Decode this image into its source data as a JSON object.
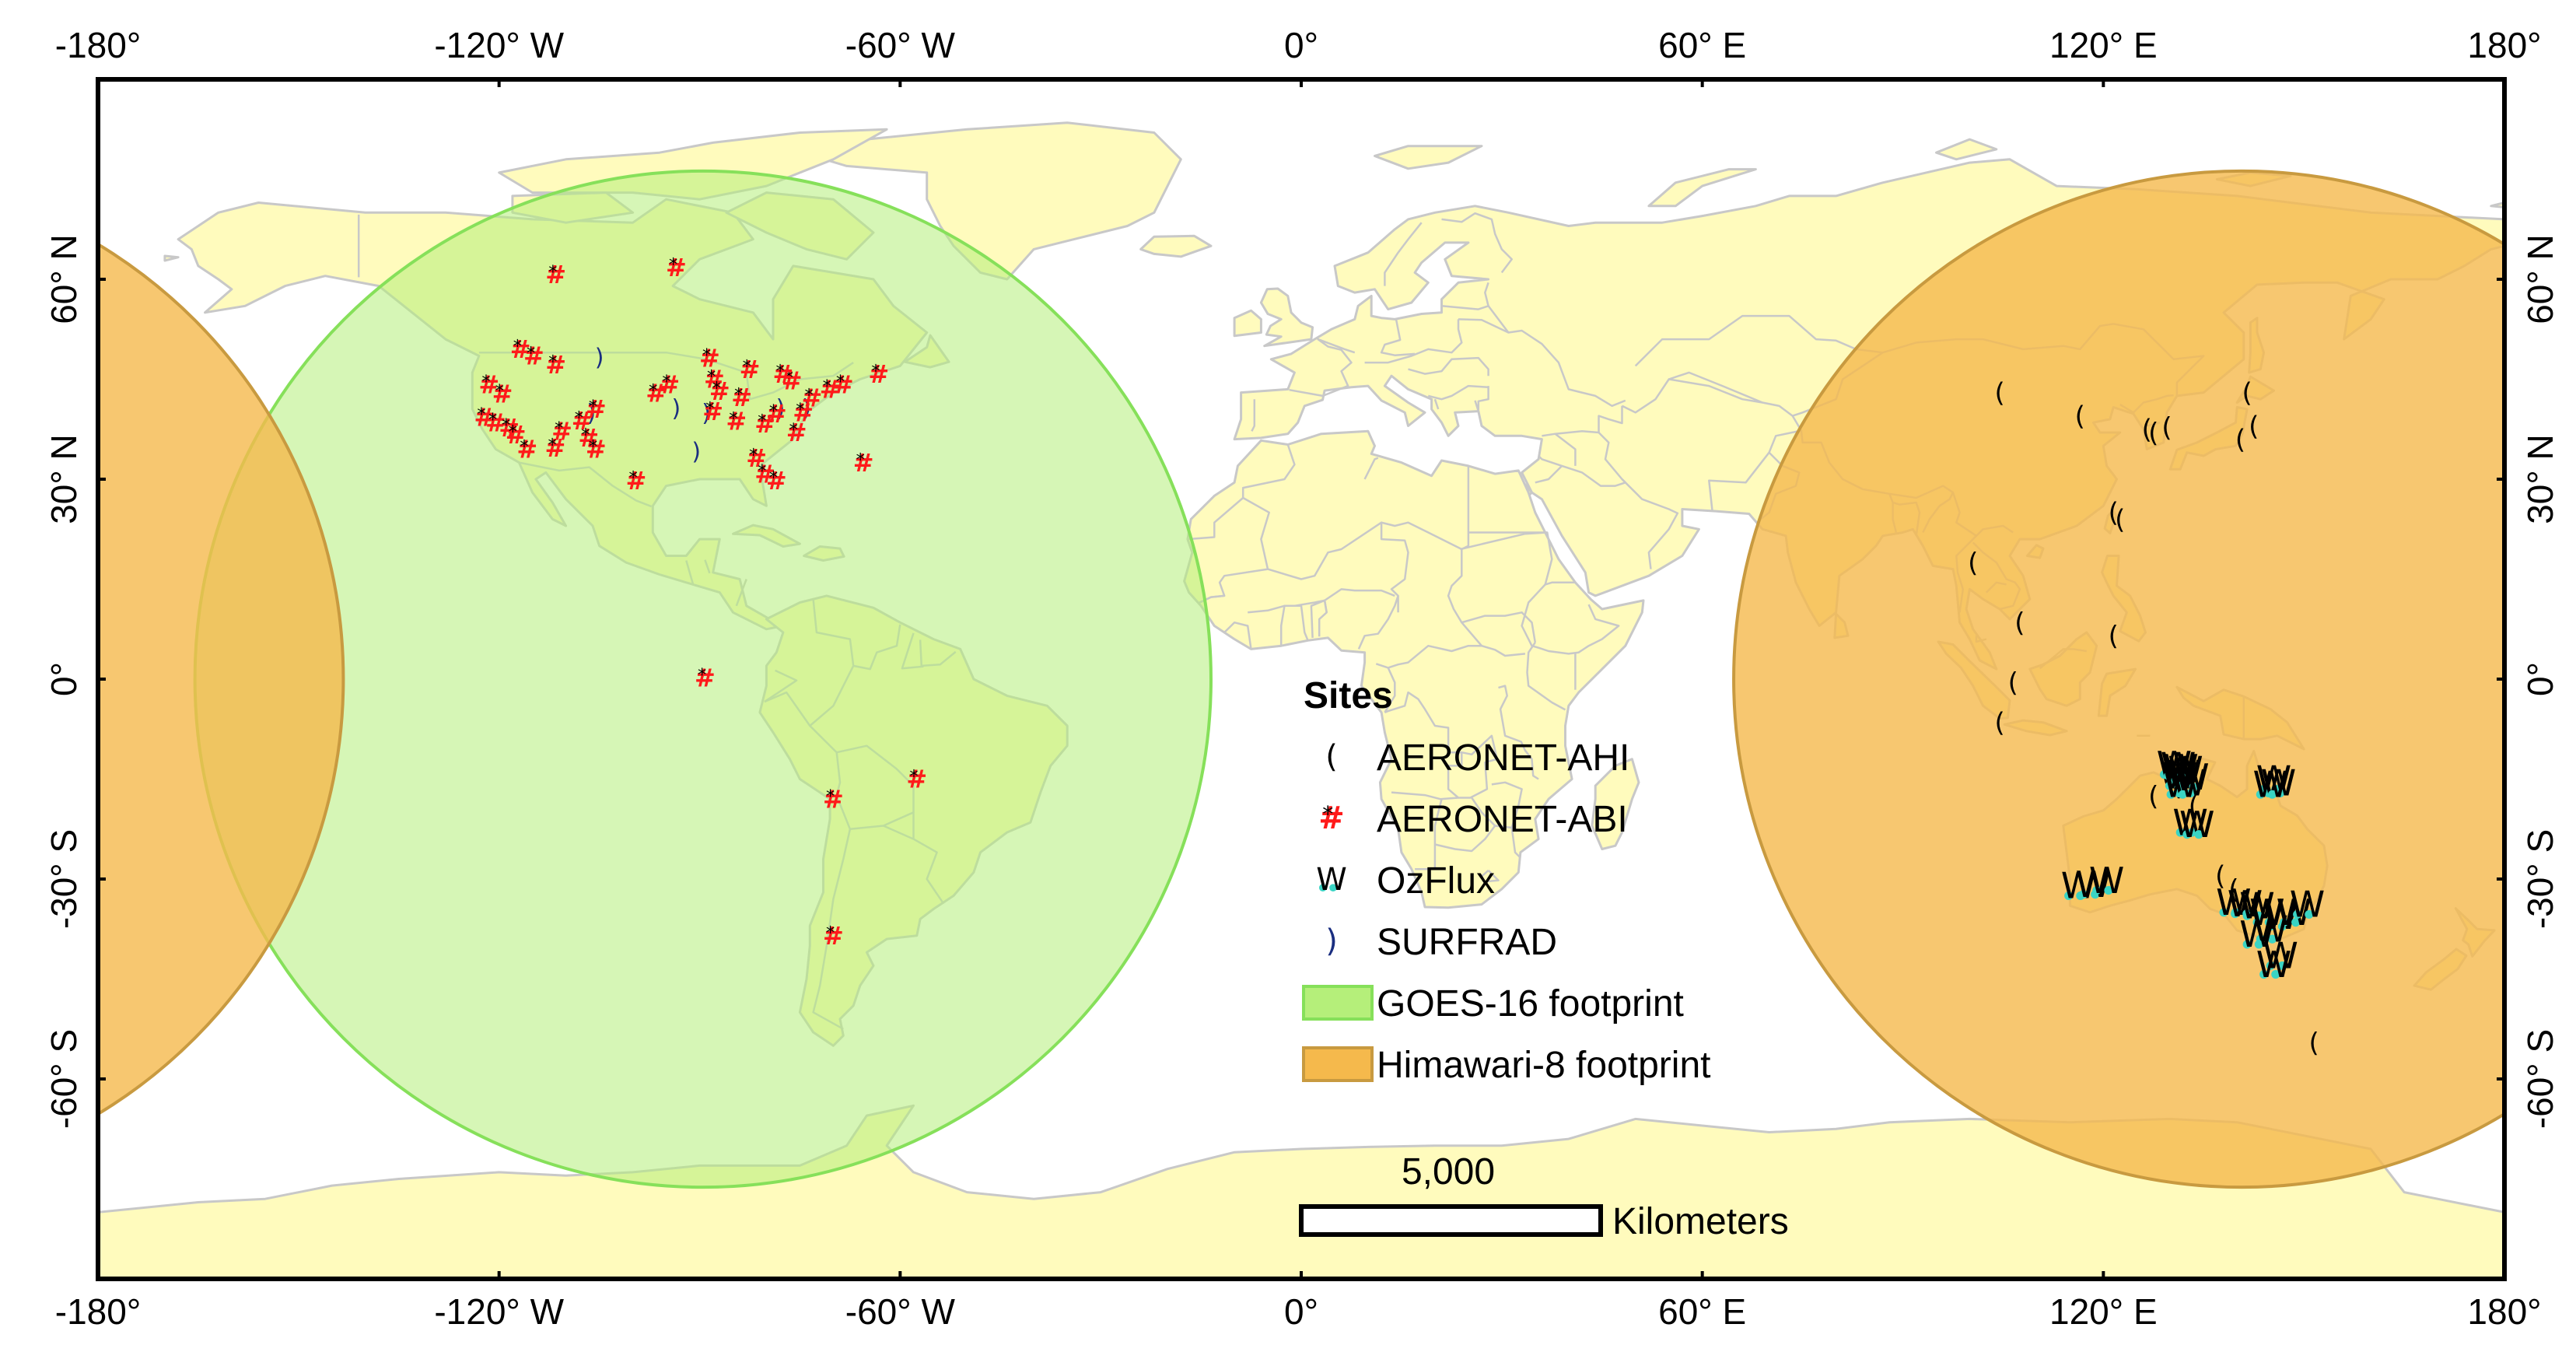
{
  "map": {
    "lon_ticks": [
      "-180°",
      "-120° W",
      "-60° W",
      "0°",
      "60° E",
      "120° E",
      "180°"
    ],
    "lon_tick_values": [
      -180,
      -120,
      -60,
      0,
      60,
      120,
      180
    ],
    "lat_ticks": [
      "60° N",
      "30° N",
      "0°",
      "-30° S",
      "-60° S"
    ],
    "lat_tick_values": [
      60,
      30,
      0,
      -30,
      -60
    ],
    "extent": {
      "lon": [
        -180,
        180
      ],
      "lat": [
        -90,
        90
      ]
    },
    "colors": {
      "land": "#fffbbd",
      "borders": "#c8c8c8",
      "ocean": "#ffffff",
      "goes_fill": "#b5ef7a",
      "goes_edge": "#86e05a",
      "himawari_fill": "#f5b94c",
      "himawari_edge": "#c89a40",
      "abi_marker": "#ff1a1a",
      "ozflux_marker": "#3ad4c4",
      "surfrad_marker": "#1a2e80"
    },
    "footprints": [
      {
        "name": "GOES-16 footprint",
        "center_lon": -89.5,
        "center_lat": 0,
        "radius_deg": 76
      },
      {
        "name": "Himawari-8 footprint",
        "center_lon": 140.7,
        "center_lat": 0,
        "radius_deg": 76
      }
    ]
  },
  "legend": {
    "title": "Sites",
    "items": [
      {
        "symbol": "(",
        "label": "AERONET-AHI",
        "icon": "aeronet-ahi-icon"
      },
      {
        "symbol": "#",
        "label": "AERONET-ABI",
        "icon": "aeronet-abi-icon"
      },
      {
        "symbol": "W",
        "label": "OzFlux",
        "icon": "ozflux-icon"
      },
      {
        "symbol": ")",
        "label": "SURFRAD",
        "icon": "surfrad-icon"
      },
      {
        "symbol": "",
        "label": "GOES-16 footprint",
        "icon": "goes-16-swatch"
      },
      {
        "symbol": "",
        "label": "Himawari-8 footprint",
        "icon": "himawari-8-swatch"
      }
    ]
  },
  "scale_bar": {
    "value": "5,000",
    "unit": "Kilometers"
  },
  "sites": {
    "aeronet_abi": [
      [
        -111.5,
        60.7
      ],
      [
        -93.5,
        61.8
      ],
      [
        -116.8,
        49.5
      ],
      [
        -114.8,
        48.5
      ],
      [
        -111.5,
        47.2
      ],
      [
        -121.5,
        44.2
      ],
      [
        -119.5,
        42.8
      ],
      [
        -122.2,
        39.3
      ],
      [
        -120.5,
        38.5
      ],
      [
        -118.5,
        37.7
      ],
      [
        -117.5,
        36.7
      ],
      [
        -115.8,
        34.5
      ],
      [
        -111.6,
        34.7
      ],
      [
        -110.6,
        37.2
      ],
      [
        -107.6,
        38.8
      ],
      [
        -106.6,
        36.2
      ],
      [
        -105.5,
        34.5
      ],
      [
        -105.5,
        40.5
      ],
      [
        -99.5,
        29.8
      ],
      [
        -96.5,
        42.9
      ],
      [
        -94.5,
        44.2
      ],
      [
        -88.5,
        48.2
      ],
      [
        -87.8,
        45.0
      ],
      [
        -87.0,
        43.2
      ],
      [
        -88.0,
        40.2
      ],
      [
        -84.5,
        38.7
      ],
      [
        -80.2,
        38.3
      ],
      [
        -78.5,
        39.8
      ],
      [
        -81.5,
        33.2
      ],
      [
        -80.2,
        30.8
      ],
      [
        -78.5,
        29.8
      ],
      [
        -75.5,
        37.0
      ],
      [
        -74.5,
        40.0
      ],
      [
        -73.2,
        42.2
      ],
      [
        -70.5,
        43.5
      ],
      [
        -68.5,
        44.2
      ],
      [
        -65.5,
        32.5
      ],
      [
        -63.2,
        45.8
      ],
      [
        -76.2,
        44.8
      ],
      [
        -82.5,
        46.5
      ],
      [
        -83.7,
        42.3
      ],
      [
        -77.5,
        45.8
      ],
      [
        -89.2,
        0.2
      ],
      [
        -70.0,
        -18.0
      ],
      [
        -57.5,
        -15.0
      ],
      [
        -70.0,
        -38.5
      ]
    ],
    "aeronet_ahi": [
      [
        104.5,
        43.0
      ],
      [
        116.5,
        39.5
      ],
      [
        126.5,
        37.5
      ],
      [
        127.5,
        37.0
      ],
      [
        129.5,
        37.8
      ],
      [
        140.5,
        36.0
      ],
      [
        141.5,
        43.0
      ],
      [
        142.5,
        38.0
      ],
      [
        121.5,
        25.0
      ],
      [
        122.5,
        24.0
      ],
      [
        100.5,
        17.5
      ],
      [
        107.5,
        8.5
      ],
      [
        121.5,
        6.5
      ],
      [
        106.5,
        -0.5
      ],
      [
        104.5,
        -6.5
      ],
      [
        129.5,
        -14.5
      ],
      [
        131.0,
        -16.0
      ],
      [
        127.5,
        -17.5
      ],
      [
        133.5,
        -19.0
      ],
      [
        139.5,
        -31.5
      ],
      [
        151.5,
        -54.5
      ],
      [
        137.5,
        -29.5
      ]
    ],
    "ozflux": [
      [
        130.6,
        -12.8
      ],
      [
        131.2,
        -13.0
      ],
      [
        131.6,
        -13.3
      ],
      [
        132.3,
        -13.6
      ],
      [
        132.0,
        -14.2
      ],
      [
        131.4,
        -14.5
      ],
      [
        133.2,
        -14.7
      ],
      [
        132.8,
        -15.6
      ],
      [
        131.6,
        -15.8
      ],
      [
        145.5,
        -15.0
      ],
      [
        146.2,
        -15.6
      ],
      [
        145.0,
        -15.8
      ],
      [
        133.0,
        -21.5
      ],
      [
        134.0,
        -21.8
      ],
      [
        116.3,
        -31.0
      ],
      [
        118.5,
        -30.8
      ],
      [
        120.5,
        -30.2
      ],
      [
        139.5,
        -33.5
      ],
      [
        141.2,
        -33.7
      ],
      [
        143.0,
        -34.0
      ],
      [
        144.5,
        -35.0
      ],
      [
        146.5,
        -35.6
      ],
      [
        148.5,
        -35.0
      ],
      [
        150.5,
        -33.8
      ],
      [
        145.0,
        -37.5
      ],
      [
        143.0,
        -38.3
      ],
      [
        146.5,
        -41.5
      ],
      [
        145.5,
        -42.8
      ]
    ],
    "surfrad": [
      [
        -105.0,
        48.3
      ],
      [
        -106.2,
        40.0
      ],
      [
        -93.5,
        40.7
      ],
      [
        -89.0,
        40.0
      ],
      [
        -77.9,
        40.7
      ],
      [
        -90.5,
        34.2
      ],
      [
        -74.0,
        40.7
      ]
    ]
  }
}
